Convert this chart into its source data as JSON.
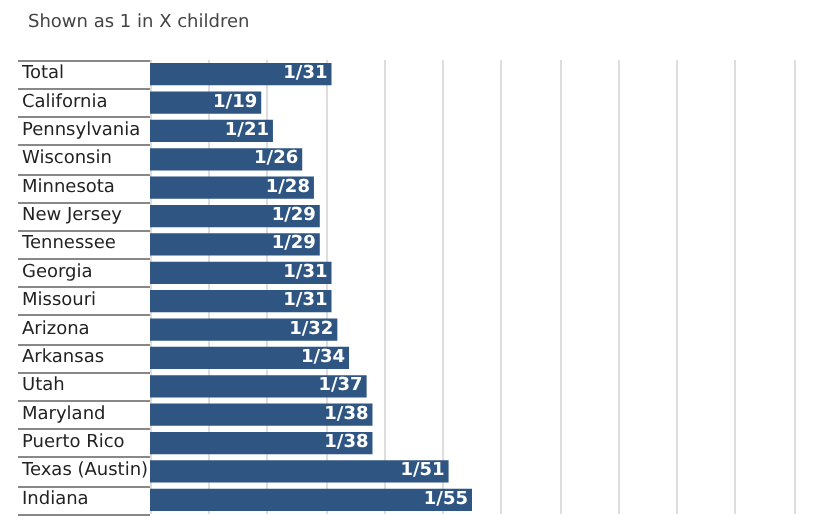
{
  "chart_data": {
    "type": "bar",
    "orientation": "horizontal",
    "subtitle": "Shown as 1 in X children",
    "categories": [
      "Total",
      "California",
      "Pennsylvania",
      "Wisconsin",
      "Minnesota",
      "New Jersey",
      "Tennessee",
      "Georgia",
      "Missouri",
      "Arizona",
      "Arkansas",
      "Utah",
      "Maryland",
      "Puerto Rico",
      "Texas (Austin)",
      "Indiana"
    ],
    "values": [
      31,
      19,
      21,
      26,
      28,
      29,
      29,
      31,
      31,
      32,
      34,
      37,
      38,
      38,
      51,
      55
    ],
    "value_labels": [
      "1/31",
      "1/19",
      "1/21",
      "1/26",
      "1/28",
      "1/29",
      "1/29",
      "1/31",
      "1/31",
      "1/32",
      "1/34",
      "1/37",
      "1/38",
      "1/38",
      "1/51",
      "1/55"
    ],
    "color": "#2f5583",
    "xlim": [
      0,
      110
    ],
    "xticks": [
      {
        "value": 0,
        "label": null
      },
      {
        "value": 10,
        "label": null
      },
      {
        "value": 20,
        "label": null
      },
      {
        "value": 30,
        "label": null
      },
      {
        "value": 40,
        "label": null
      },
      {
        "value": 50,
        "label": null
      },
      {
        "value": 60,
        "label": null
      },
      {
        "value": 70,
        "label": null
      },
      {
        "value": 80,
        "label": null
      },
      {
        "value": 90,
        "label": null
      },
      {
        "value": 100,
        "label": null
      },
      {
        "value": 110,
        "label": null
      }
    ],
    "grid": "x",
    "tick_labels": "y"
  }
}
